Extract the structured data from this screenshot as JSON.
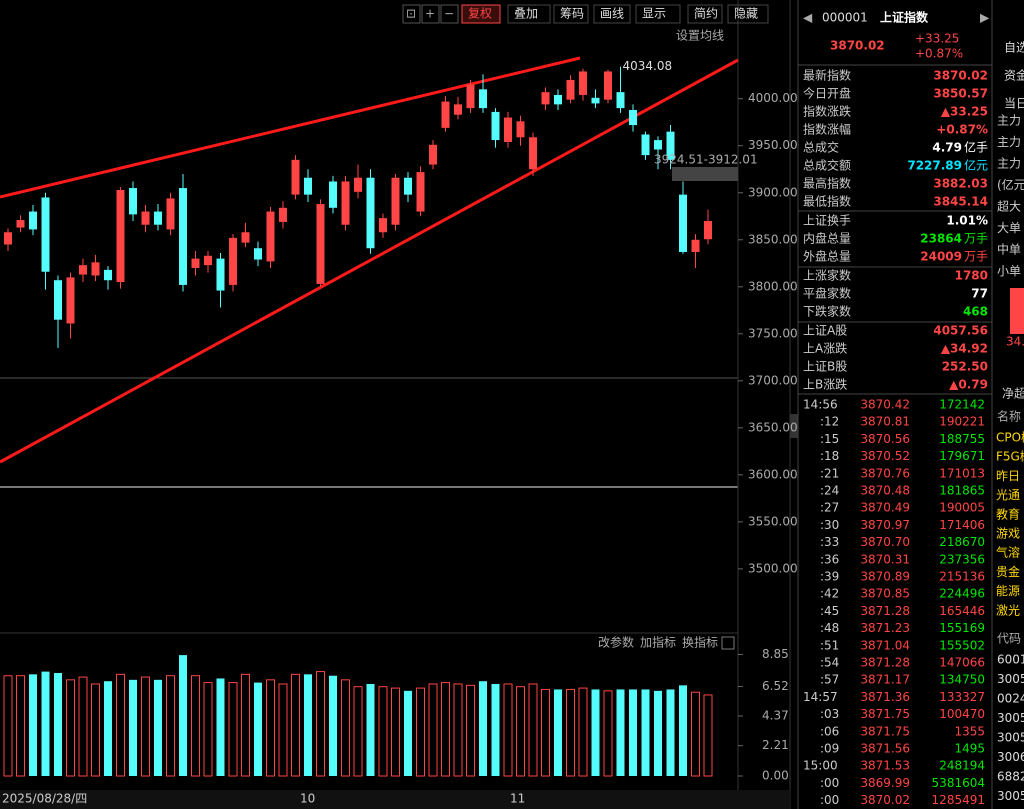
{
  "toolbar": {
    "buttons": [
      "复权",
      "叠加",
      "筹码",
      "画线",
      "显示",
      "简约",
      "隐藏"
    ],
    "ma_setting": "设置均线"
  },
  "chart_data": [
    {
      "type": "candlestick",
      "open": [
        3845,
        3863,
        3880,
        3895,
        3807,
        3761,
        3813,
        3812,
        3818,
        3805,
        3905,
        3866,
        3880,
        3861,
        3905,
        3820,
        3823,
        3830,
        3802,
        3847,
        3841,
        3827,
        3869,
        3898,
        3916,
        3803,
        3912,
        3866,
        3901,
        3916,
        3858,
        3866,
        3916,
        3880,
        3930,
        3969,
        3983,
        3990,
        4010,
        3986,
        3954,
        3959,
        3925,
        3994,
        4004,
        3999,
        4004,
        4001,
        3999,
        4007,
        3988,
        3962,
        3956,
        3965,
        3898,
        3837,
        3850.57
      ],
      "close": [
        3858,
        3871,
        3861,
        3816,
        3765,
        3810,
        3823,
        3826,
        3807,
        3903,
        3877,
        3880,
        3866,
        3894,
        3802,
        3830,
        3833,
        3796,
        3852,
        3858,
        3829,
        3880,
        3884,
        3935,
        3898,
        3888,
        3884,
        3912,
        3916,
        3841,
        3873,
        3916,
        3898,
        3922,
        3951,
        3997,
        3994,
        4015,
        3990,
        3956,
        3980,
        3976,
        3959,
        4007,
        3994,
        4020,
        4029,
        3995,
        4029,
        3990,
        3972,
        3940,
        3946,
        3935,
        3837,
        3850,
        3870.02
      ],
      "high": [
        3862,
        3876,
        3887,
        3900,
        3812,
        3815,
        3830,
        3834,
        3822,
        3906,
        3912,
        3887,
        3888,
        3900,
        3920,
        3838,
        3838,
        3836,
        3856,
        3868,
        3848,
        3885,
        3891,
        3940,
        3925,
        3893,
        3918,
        3918,
        3930,
        3925,
        3878,
        3920,
        3922,
        3928,
        3956,
        4003,
        4002,
        4020,
        4026,
        3990,
        3986,
        3982,
        3964,
        4012,
        4010,
        4025,
        4032,
        4010,
        4031,
        4034.08,
        3994,
        3965,
        3960,
        3972,
        3912.01,
        3856,
        3882.03
      ],
      "low": [
        3838,
        3858,
        3855,
        3797,
        3735,
        3745,
        3805,
        3806,
        3797,
        3798,
        3870,
        3858,
        3860,
        3855,
        3795,
        3812,
        3815,
        3778,
        3795,
        3842,
        3822,
        3820,
        3862,
        3893,
        3890,
        3800,
        3878,
        3860,
        3894,
        3835,
        3852,
        3860,
        3890,
        3875,
        3925,
        3965,
        3978,
        3985,
        3985,
        3948,
        3948,
        3950,
        3918,
        3988,
        3988,
        3995,
        3998,
        3990,
        3995,
        3985,
        3965,
        3935,
        3925,
        3925,
        3835,
        3820,
        3845.14
      ],
      "up_color": "#ff4545",
      "down_color": "#54fcfc",
      "ylim": [
        3435,
        4105
      ],
      "yticks": [
        {
          "value": 3500,
          "label": "3500.00"
        },
        {
          "value": 3550,
          "label": "3550.00"
        },
        {
          "value": 3600,
          "label": "3600.00"
        },
        {
          "value": 3650,
          "label": "3650.00"
        },
        {
          "value": 3700,
          "label": "3700.00"
        },
        {
          "value": 3750,
          "label": "3750.00"
        },
        {
          "value": 3800,
          "label": "3800.00"
        },
        {
          "value": 3850,
          "label": "3850.00"
        },
        {
          "value": 3900,
          "label": "3900.00"
        },
        {
          "value": 3950,
          "label": "3950.00"
        },
        {
          "value": 4000,
          "label": "4000.00"
        }
      ],
      "high_label": "4034.08",
      "gap_label": "3924.51-3912.01"
    },
    {
      "type": "bar",
      "values": [
        7.3,
        7.3,
        7.4,
        7.6,
        7.5,
        7.0,
        7.2,
        6.7,
        6.9,
        7.4,
        7.0,
        7.2,
        7.0,
        7.3,
        8.8,
        7.3,
        6.8,
        7.1,
        6.8,
        7.4,
        6.8,
        7.0,
        6.7,
        7.4,
        7.4,
        7.6,
        7.3,
        7.0,
        6.5,
        6.7,
        6.5,
        6.4,
        6.2,
        6.4,
        6.7,
        6.8,
        6.7,
        6.6,
        6.9,
        6.7,
        6.7,
        6.5,
        6.7,
        6.3,
        6.3,
        6.3,
        6.4,
        6.3,
        6.2,
        6.3,
        6.3,
        6.3,
        6.2,
        6.3,
        6.6,
        6.1,
        5.9
      ],
      "ylim": [
        0,
        9.9
      ],
      "yticks": [
        {
          "value": 0,
          "label": "0.00"
        },
        2.21,
        4.37,
        6.52,
        8.85
      ],
      "buttons": [
        "改参数",
        "加指标",
        "换指标"
      ]
    }
  ],
  "x_labels": [
    "2025/08/28/四",
    "10",
    "11"
  ],
  "quote": {
    "code": "000001",
    "name": "上证指数",
    "price": "3870.02",
    "change": "+33.25",
    "pct": "+0.87%"
  },
  "stats": [
    {
      "label": "最新指数",
      "value": "3870.02",
      "color": "#ff4545"
    },
    {
      "label": "今日开盘",
      "value": "3850.57",
      "color": "#ff4545"
    },
    {
      "label": "指数涨跌",
      "value": "▲33.25",
      "color": "#ff4545"
    },
    {
      "label": "指数涨幅",
      "value": "+0.87%",
      "color": "#ff4545"
    },
    {
      "label": "总成交",
      "value": "4.79",
      "unit": "亿手",
      "color": "#ffffff"
    },
    {
      "label": "总成交额",
      "value": "7227.89",
      "unit": "亿元",
      "color": "#00e5ff"
    },
    {
      "label": "最高指数",
      "value": "3882.03",
      "color": "#ff4545"
    },
    {
      "label": "最低指数",
      "value": "3845.14",
      "color": "#ff4545"
    },
    {
      "label": "上证换手",
      "value": "1.01%",
      "color": "#ffffff"
    },
    {
      "label": "内盘总量",
      "value": "23864",
      "unit": "万手",
      "color": "#00e600"
    },
    {
      "label": "外盘总量",
      "value": "24009",
      "unit": "万手",
      "color": "#ff4545"
    },
    {
      "label": "上涨家数",
      "value": "1780",
      "color": "#ff4545"
    },
    {
      "label": "平盘家数",
      "value": "77",
      "color": "#ffffff"
    },
    {
      "label": "下跌家数",
      "value": "468",
      "color": "#00e600"
    },
    {
      "label": "上证A股",
      "value": "4057.56",
      "color": "#ff4545"
    },
    {
      "label": "上A涨跌",
      "value": "▲34.92",
      "color": "#ff4545"
    },
    {
      "label": "上证B股",
      "value": "252.50",
      "color": "#ff4545"
    },
    {
      "label": "上B涨跌",
      "value": "▲0.79",
      "color": "#ff4545"
    }
  ],
  "ticks": [
    {
      "time": "14:56",
      "price": "3870.42",
      "volume": "172142",
      "color": "#00e600"
    },
    {
      "time": ":12",
      "price": "3870.81",
      "volume": "190221",
      "color": "#ff4545"
    },
    {
      "time": ":15",
      "price": "3870.56",
      "volume": "188755",
      "color": "#00e600"
    },
    {
      "time": ":18",
      "price": "3870.52",
      "volume": "179671",
      "color": "#00e600"
    },
    {
      "time": ":21",
      "price": "3870.76",
      "volume": "171013",
      "color": "#ff4545"
    },
    {
      "time": ":24",
      "price": "3870.48",
      "volume": "181865",
      "color": "#00e600"
    },
    {
      "time": ":27",
      "price": "3870.49",
      "volume": "190005",
      "color": "#ff4545"
    },
    {
      "time": ":30",
      "price": "3870.97",
      "volume": "171406",
      "color": "#ff4545"
    },
    {
      "time": ":33",
      "price": "3870.70",
      "volume": "218670",
      "color": "#00e600"
    },
    {
      "time": ":36",
      "price": "3870.31",
      "volume": "237356",
      "color": "#00e600"
    },
    {
      "time": ":39",
      "price": "3870.89",
      "volume": "215136",
      "color": "#ff4545"
    },
    {
      "time": ":42",
      "price": "3870.85",
      "volume": "224496",
      "color": "#00e600"
    },
    {
      "time": ":45",
      "price": "3871.28",
      "volume": "165446",
      "color": "#ff4545"
    },
    {
      "time": ":48",
      "price": "3871.23",
      "volume": "155169",
      "color": "#00e600"
    },
    {
      "time": ":51",
      "price": "3871.04",
      "volume": "155502",
      "color": "#00e600"
    },
    {
      "time": ":54",
      "price": "3871.28",
      "volume": "147066",
      "color": "#ff4545"
    },
    {
      "time": ":57",
      "price": "3871.17",
      "volume": "134750",
      "color": "#00e600"
    },
    {
      "time": "14:57",
      "price": "3871.36",
      "volume": "133327",
      "color": "#ff4545"
    },
    {
      "time": ":03",
      "price": "3871.75",
      "volume": "100470",
      "color": "#ff4545"
    },
    {
      "time": ":06",
      "price": "3871.75",
      "volume": "1355",
      "color": "#ff4545"
    },
    {
      "time": ":09",
      "price": "3871.56",
      "volume": "1495",
      "color": "#00e600"
    },
    {
      "time": "15:00",
      "price": "3871.53",
      "volume": "248194",
      "color": "#00e600"
    },
    {
      "time": ":00",
      "price": "3869.99",
      "volume": "5381604",
      "color": "#00e600"
    },
    {
      "time": ":00",
      "price": "3870.02",
      "volume": "1285491",
      "color": "#ff4545"
    }
  ],
  "side": {
    "tabs": [
      "自选",
      "资金",
      "当日"
    ],
    "flow": [
      "主力",
      "主力",
      "主力",
      "(亿元",
      "超大",
      "大单",
      "中单",
      "小单"
    ],
    "bar_value": "34.",
    "net": "净超",
    "list_header": "名称",
    "sectors": [
      "CPO概",
      "F5G概",
      "昨日",
      "光通",
      "教育",
      "游戏",
      "气溶",
      "贵金",
      "能源",
      "激光"
    ],
    "code_header": "代码",
    "codes": [
      "6001",
      "3005",
      "0024",
      "3005",
      "3005",
      "3006",
      "6882",
      "3005"
    ]
  }
}
